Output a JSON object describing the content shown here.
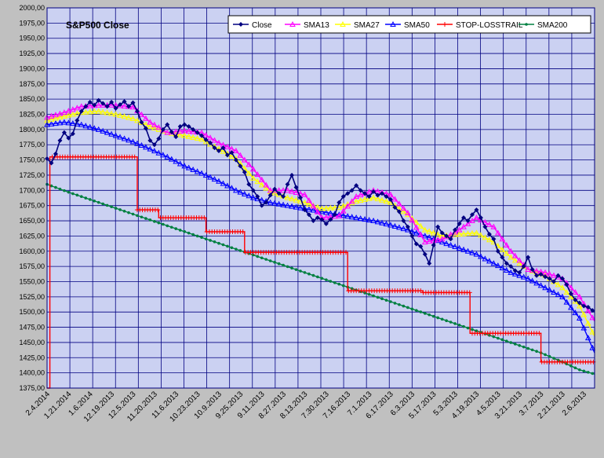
{
  "chart_data": {
    "type": "line",
    "title": "S&P500 Close",
    "x_tick_labels": [
      "2.4.2014",
      "1.21.2014",
      "1.6.2014",
      "12.19.2013",
      "12.5.2013",
      "11.20.2013",
      "11.6.2013",
      "10.23.2013",
      "10.9.2013",
      "9.25.2013",
      "9.11.2013",
      "8.27.2013",
      "8.13.2013",
      "7.30.2013",
      "7.16.2013",
      "7.1.2013",
      "6.17.2013",
      "6.3.2013",
      "5.17.2013",
      "5.3.2013",
      "4.19.2013",
      "4.5.2013",
      "3.21.2013",
      "3.7.2013",
      "2.21.2013",
      "2.6.2013"
    ],
    "y_tick_labels": [
      "2000,00",
      "1975,00",
      "1950,00",
      "1925,00",
      "1900,00",
      "1875,00",
      "1850,00",
      "1825,00",
      "1800,00",
      "1775,00",
      "1750,00",
      "1725,00",
      "1700,00",
      "1675,00",
      "1650,00",
      "1625,00",
      "1600,00",
      "1575,00",
      "1550,00",
      "1525,00",
      "1500,00",
      "1475,00",
      "1450,00",
      "1425,00",
      "1400,00",
      "1375,00"
    ],
    "ylim": [
      1375,
      2000
    ],
    "xlim": [
      0,
      255
    ],
    "grid": true,
    "legend_position": "top-right",
    "series_points": {
      "Close": [
        [
          0,
          1752
        ],
        [
          2,
          1745
        ],
        [
          4,
          1760
        ],
        [
          6,
          1782
        ],
        [
          8,
          1795
        ],
        [
          10,
          1786
        ],
        [
          12,
          1793
        ],
        [
          14,
          1815
        ],
        [
          16,
          1830
        ],
        [
          18,
          1838
        ],
        [
          20,
          1845
        ],
        [
          22,
          1840
        ],
        [
          24,
          1848
        ],
        [
          26,
          1843
        ],
        [
          28,
          1838
        ],
        [
          30,
          1845
        ],
        [
          32,
          1835
        ],
        [
          34,
          1841
        ],
        [
          36,
          1846
        ],
        [
          38,
          1838
        ],
        [
          40,
          1844
        ],
        [
          42,
          1830
        ],
        [
          44,
          1812
        ],
        [
          46,
          1802
        ],
        [
          48,
          1782
        ],
        [
          50,
          1775
        ],
        [
          52,
          1785
        ],
        [
          54,
          1800
        ],
        [
          56,
          1808
        ],
        [
          58,
          1796
        ],
        [
          60,
          1788
        ],
        [
          62,
          1805
        ],
        [
          64,
          1808
        ],
        [
          66,
          1805
        ],
        [
          68,
          1800
        ],
        [
          70,
          1795
        ],
        [
          72,
          1790
        ],
        [
          74,
          1783
        ],
        [
          76,
          1778
        ],
        [
          78,
          1770
        ],
        [
          80,
          1765
        ],
        [
          82,
          1770
        ],
        [
          84,
          1758
        ],
        [
          86,
          1762
        ],
        [
          88,
          1750
        ],
        [
          90,
          1740
        ],
        [
          92,
          1730
        ],
        [
          94,
          1710
        ],
        [
          96,
          1700
        ],
        [
          98,
          1690
        ],
        [
          100,
          1675
        ],
        [
          102,
          1680
        ],
        [
          104,
          1692
        ],
        [
          106,
          1702
        ],
        [
          108,
          1695
        ],
        [
          110,
          1690
        ],
        [
          112,
          1710
        ],
        [
          114,
          1725
        ],
        [
          116,
          1705
        ],
        [
          118,
          1688
        ],
        [
          120,
          1668
        ],
        [
          122,
          1660
        ],
        [
          124,
          1650
        ],
        [
          126,
          1655
        ],
        [
          128,
          1652
        ],
        [
          130,
          1645
        ],
        [
          132,
          1652
        ],
        [
          134,
          1660
        ],
        [
          136,
          1680
        ],
        [
          138,
          1690
        ],
        [
          140,
          1695
        ],
        [
          142,
          1700
        ],
        [
          144,
          1708
        ],
        [
          146,
          1700
        ],
        [
          148,
          1695
        ],
        [
          150,
          1690
        ],
        [
          152,
          1698
        ],
        [
          154,
          1692
        ],
        [
          156,
          1695
        ],
        [
          158,
          1690
        ],
        [
          160,
          1685
        ],
        [
          162,
          1672
        ],
        [
          164,
          1665
        ],
        [
          166,
          1650
        ],
        [
          168,
          1640
        ],
        [
          170,
          1625
        ],
        [
          172,
          1612
        ],
        [
          174,
          1608
        ],
        [
          176,
          1595
        ],
        [
          178,
          1580
        ],
        [
          180,
          1610
        ],
        [
          182,
          1640
        ],
        [
          184,
          1630
        ],
        [
          186,
          1625
        ],
        [
          188,
          1620
        ],
        [
          190,
          1635
        ],
        [
          192,
          1645
        ],
        [
          194,
          1655
        ],
        [
          196,
          1650
        ],
        [
          198,
          1660
        ],
        [
          200,
          1668
        ],
        [
          202,
          1655
        ],
        [
          204,
          1640
        ],
        [
          206,
          1628
        ],
        [
          208,
          1620
        ],
        [
          210,
          1600
        ],
        [
          212,
          1590
        ],
        [
          214,
          1580
        ],
        [
          216,
          1575
        ],
        [
          218,
          1568
        ],
        [
          220,
          1565
        ],
        [
          222,
          1575
        ],
        [
          224,
          1590
        ],
        [
          226,
          1570
        ],
        [
          228,
          1560
        ],
        [
          230,
          1562
        ],
        [
          232,
          1558
        ],
        [
          234,
          1555
        ],
        [
          236,
          1550
        ],
        [
          238,
          1560
        ],
        [
          240,
          1555
        ],
        [
          242,
          1545
        ],
        [
          244,
          1530
        ],
        [
          246,
          1520
        ],
        [
          248,
          1515
        ],
        [
          250,
          1510
        ],
        [
          252,
          1508
        ],
        [
          255,
          1500
        ]
      ],
      "SMA13": [
        [
          0,
          1820
        ],
        [
          8,
          1828
        ],
        [
          16,
          1838
        ],
        [
          24,
          1840
        ],
        [
          32,
          1840
        ],
        [
          40,
          1837
        ],
        [
          48,
          1812
        ],
        [
          56,
          1795
        ],
        [
          64,
          1798
        ],
        [
          72,
          1795
        ],
        [
          80,
          1778
        ],
        [
          88,
          1765
        ],
        [
          96,
          1735
        ],
        [
          104,
          1700
        ],
        [
          112,
          1700
        ],
        [
          120,
          1693
        ],
        [
          128,
          1655
        ],
        [
          136,
          1658
        ],
        [
          144,
          1690
        ],
        [
          152,
          1700
        ],
        [
          160,
          1693
        ],
        [
          168,
          1663
        ],
        [
          176,
          1615
        ],
        [
          184,
          1620
        ],
        [
          192,
          1635
        ],
        [
          200,
          1655
        ],
        [
          208,
          1640
        ],
        [
          216,
          1600
        ],
        [
          224,
          1570
        ],
        [
          232,
          1565
        ],
        [
          240,
          1555
        ],
        [
          248,
          1525
        ],
        [
          255,
          1485
        ]
      ],
      "SMA27": [
        [
          0,
          1815
        ],
        [
          8,
          1822
        ],
        [
          16,
          1828
        ],
        [
          24,
          1830
        ],
        [
          32,
          1825
        ],
        [
          40,
          1818
        ],
        [
          48,
          1805
        ],
        [
          56,
          1795
        ],
        [
          64,
          1790
        ],
        [
          72,
          1784
        ],
        [
          80,
          1768
        ],
        [
          88,
          1752
        ],
        [
          96,
          1720
        ],
        [
          104,
          1698
        ],
        [
          112,
          1688
        ],
        [
          120,
          1680
        ],
        [
          128,
          1670
        ],
        [
          136,
          1672
        ],
        [
          144,
          1682
        ],
        [
          152,
          1688
        ],
        [
          160,
          1680
        ],
        [
          168,
          1660
        ],
        [
          176,
          1635
        ],
        [
          184,
          1625
        ],
        [
          192,
          1628
        ],
        [
          200,
          1630
        ],
        [
          208,
          1615
        ],
        [
          216,
          1590
        ],
        [
          224,
          1570
        ],
        [
          232,
          1560
        ],
        [
          240,
          1540
        ],
        [
          248,
          1510
        ],
        [
          255,
          1460
        ]
      ],
      "SMA50": [
        [
          0,
          1808
        ],
        [
          8,
          1812
        ],
        [
          16,
          1808
        ],
        [
          24,
          1800
        ],
        [
          32,
          1790
        ],
        [
          40,
          1780
        ],
        [
          48,
          1768
        ],
        [
          56,
          1755
        ],
        [
          64,
          1740
        ],
        [
          72,
          1728
        ],
        [
          80,
          1715
        ],
        [
          88,
          1700
        ],
        [
          96,
          1688
        ],
        [
          104,
          1680
        ],
        [
          112,
          1675
        ],
        [
          120,
          1670
        ],
        [
          128,
          1665
        ],
        [
          136,
          1660
        ],
        [
          144,
          1655
        ],
        [
          152,
          1650
        ],
        [
          160,
          1643
        ],
        [
          168,
          1635
        ],
        [
          176,
          1625
        ],
        [
          184,
          1615
        ],
        [
          192,
          1605
        ],
        [
          200,
          1595
        ],
        [
          208,
          1580
        ],
        [
          216,
          1565
        ],
        [
          224,
          1555
        ],
        [
          232,
          1540
        ],
        [
          240,
          1525
        ],
        [
          248,
          1490
        ],
        [
          255,
          1433
        ]
      ],
      "STOP-LOSSTRAIL": [
        [
          0,
          1375
        ],
        [
          1.3,
          1375
        ],
        [
          1.3,
          1755
        ],
        [
          42,
          1755
        ],
        [
          42,
          1668
        ],
        [
          52,
          1668
        ],
        [
          52,
          1655
        ],
        [
          74,
          1655
        ],
        [
          74,
          1632
        ],
        [
          92,
          1632
        ],
        [
          92,
          1598
        ],
        [
          140,
          1598
        ],
        [
          140,
          1535
        ],
        [
          175,
          1535
        ],
        [
          175,
          1532
        ],
        [
          197,
          1532
        ],
        [
          197,
          1465
        ],
        [
          230,
          1465
        ],
        [
          230,
          1418
        ],
        [
          255,
          1418
        ]
      ],
      "SMA200": [
        [
          0,
          1710
        ],
        [
          10,
          1697
        ],
        [
          20,
          1685
        ],
        [
          30,
          1673
        ],
        [
          40,
          1661
        ],
        [
          50,
          1649
        ],
        [
          60,
          1637
        ],
        [
          70,
          1625
        ],
        [
          80,
          1613
        ],
        [
          90,
          1601
        ],
        [
          100,
          1589
        ],
        [
          110,
          1577
        ],
        [
          120,
          1565
        ],
        [
          130,
          1553
        ],
        [
          140,
          1541
        ],
        [
          150,
          1529
        ],
        [
          160,
          1517
        ],
        [
          170,
          1505
        ],
        [
          180,
          1493
        ],
        [
          190,
          1481
        ],
        [
          200,
          1469
        ],
        [
          210,
          1457
        ],
        [
          220,
          1445
        ],
        [
          230,
          1433
        ],
        [
          240,
          1418
        ],
        [
          248,
          1405
        ],
        [
          255,
          1398
        ]
      ]
    },
    "series": [
      {
        "name": "Close",
        "color": "#000080",
        "marker": "diamond"
      },
      {
        "name": "SMA13",
        "color": "#ff00ff",
        "marker": "triangle"
      },
      {
        "name": "SMA27",
        "color": "#ffff00",
        "marker": "triangle"
      },
      {
        "name": "SMA50",
        "color": "#0000ff",
        "marker": "triangle"
      },
      {
        "name": "STOP-LOSSTRAIL",
        "color": "#ff0000",
        "marker": "plus"
      },
      {
        "name": "SMA200",
        "color": "#008040",
        "marker": "circle"
      }
    ]
  },
  "colors": {
    "background": "#c0c0c0",
    "plot_area": "#cbd1f2",
    "grid": "#000080",
    "tick_text": "#000000"
  }
}
